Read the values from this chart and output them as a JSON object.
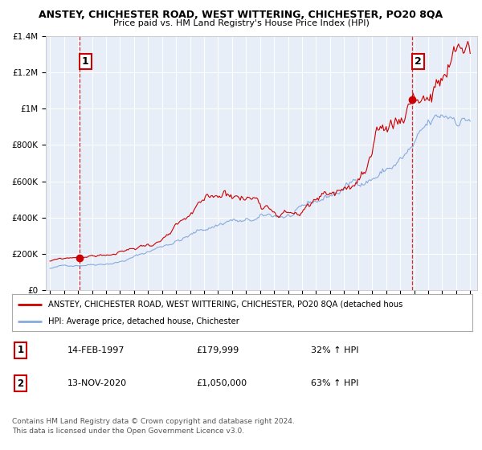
{
  "title1": "ANSTEY, CHICHESTER ROAD, WEST WITTERING, CHICHESTER, PO20 8QA",
  "title2": "Price paid vs. HM Land Registry's House Price Index (HPI)",
  "ylim": [
    0,
    1400000
  ],
  "xlim_start": 1994.7,
  "xlim_end": 2025.5,
  "yticks": [
    0,
    200000,
    400000,
    600000,
    800000,
    1000000,
    1200000,
    1400000
  ],
  "ytick_labels": [
    "£0",
    "£200K",
    "£400K",
    "£600K",
    "£800K",
    "£1M",
    "£1.2M",
    "£1.4M"
  ],
  "xticks": [
    1995,
    1996,
    1997,
    1998,
    1999,
    2000,
    2001,
    2002,
    2003,
    2004,
    2005,
    2006,
    2007,
    2008,
    2009,
    2010,
    2011,
    2012,
    2013,
    2014,
    2015,
    2016,
    2017,
    2018,
    2019,
    2020,
    2021,
    2022,
    2023,
    2024,
    2025
  ],
  "red_line_color": "#cc0000",
  "blue_line_color": "#88aadd",
  "marker_color": "#cc0000",
  "dashed_line_color": "#cc0000",
  "point1_x": 1997.12,
  "point1_y": 179999,
  "point1_label": "1",
  "point1_date": "14-FEB-1997",
  "point1_price": "£179,999",
  "point1_hpi": "32% ↑ HPI",
  "point2_x": 2020.87,
  "point2_y": 1050000,
  "point2_label": "2",
  "point2_date": "13-NOV-2020",
  "point2_price": "£1,050,000",
  "point2_hpi": "63% ↑ HPI",
  "legend_red": "ANSTEY, CHICHESTER ROAD, WEST WITTERING, CHICHESTER, PO20 8QA (detached hous",
  "legend_blue": "HPI: Average price, detached house, Chichester",
  "footer1": "Contains HM Land Registry data © Crown copyright and database right 2024.",
  "footer2": "This data is licensed under the Open Government Licence v3.0.",
  "bg_color": "#e8eef8",
  "fig_bg_color": "#ffffff"
}
